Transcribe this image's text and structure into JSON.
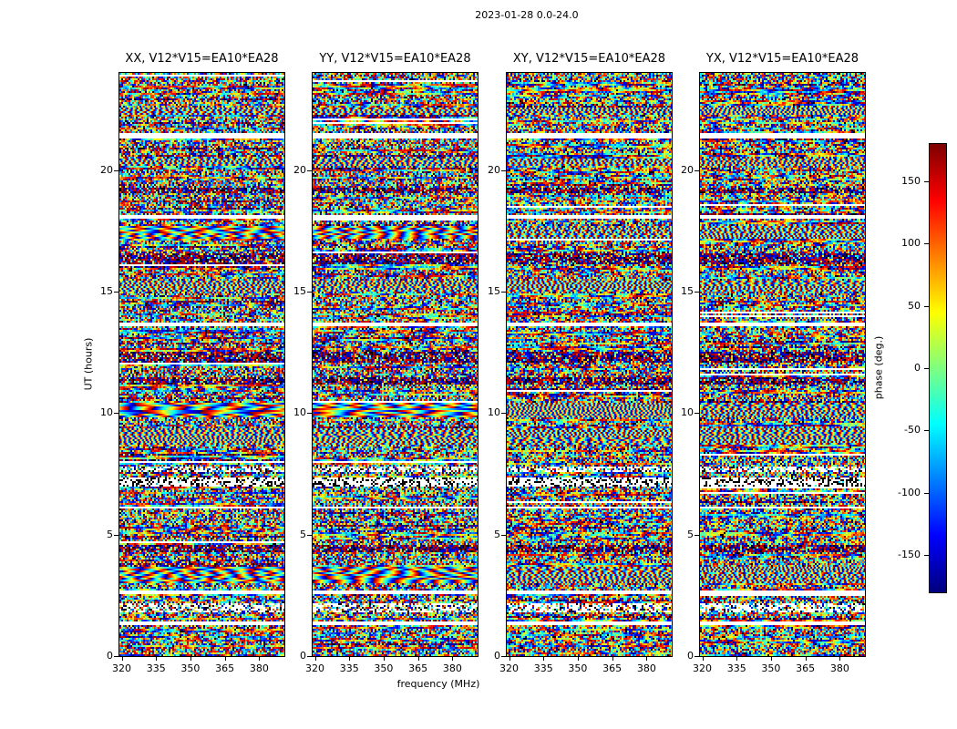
{
  "figure": {
    "title": "2023-01-28 0.0-24.0",
    "xlabel": "frequency (MHz)",
    "ylabel": "UT (hours)",
    "colorbar_label": "phase (deg.)"
  },
  "panels": [
    {
      "title": "XX, V12*V15=EA10*EA28"
    },
    {
      "title": "YY, V12*V15=EA10*EA28"
    },
    {
      "title": "XY, V12*V15=EA10*EA28"
    },
    {
      "title": "YX, V12*V15=EA10*EA28"
    }
  ],
  "chart_data": {
    "type": "heatmap",
    "title": "2023-01-28 0.0-24.0",
    "xlabel": "frequency (MHz)",
    "ylabel": "UT (hours)",
    "colorbar_label": "phase (deg.)",
    "colormap": "jet",
    "polarizations": [
      "XX",
      "YY",
      "XY",
      "YX"
    ],
    "baseline": "V12*V15=EA10*EA28",
    "xlim": [
      319,
      391
    ],
    "ylim": [
      0,
      24
    ],
    "zlim": [
      -180,
      180
    ],
    "xticks": [
      320,
      335,
      350,
      365,
      380
    ],
    "yticks": [
      0,
      5,
      10,
      15,
      20
    ],
    "colorbar_ticks": [
      150,
      100,
      50,
      0,
      -50,
      -100,
      -150
    ],
    "description": "Four panels of interferometric visibility phase (deg.) versus frequency (320-390 MHz) and UT time (0-24 h) for baseline V12*V15=EA10*EA28 in polarizations XX, YY, XY, YX. The pixel values are quasi-random phases spanning -180 to +180 deg rendered with the jet colormap; horizontal band structure includes blank (white) time gaps, dense dark scans, fine fringe stripes, and smooth rainbow fringe scans (strongest in XX and YY).",
    "noise_seed": 987653,
    "bands": [
      {
        "t0": 1.25,
        "t1": 1.45,
        "type": "gap"
      },
      {
        "t0": 1.8,
        "t1": 2.15,
        "type": "speckle"
      },
      {
        "t0": 2.55,
        "t1": 2.72,
        "type": "gap"
      },
      {
        "t0": 3.0,
        "t1": 3.65,
        "type": "fringe",
        "xpol": "fringe2"
      },
      {
        "t0": 4.3,
        "t1": 4.6,
        "type": "dark"
      },
      {
        "t0": 6.05,
        "t1": 6.18,
        "type": "gap"
      },
      {
        "t0": 7.0,
        "t1": 7.35,
        "type": "whitedash"
      },
      {
        "t0": 7.6,
        "t1": 7.78,
        "type": "speckle"
      },
      {
        "t0": 8.7,
        "t1": 9.35,
        "type": "fringe2"
      },
      {
        "t0": 9.8,
        "t1": 10.45,
        "type": "fringe",
        "xpol": "fringe2"
      },
      {
        "t0": 11.2,
        "t1": 11.45,
        "type": "dark"
      },
      {
        "t0": 12.1,
        "t1": 12.5,
        "type": "dark"
      },
      {
        "t0": 13.6,
        "t1": 13.72,
        "type": "gap"
      },
      {
        "t0": 15.0,
        "t1": 15.45,
        "type": "fringe2"
      },
      {
        "t0": 16.1,
        "t1": 16.6,
        "type": "dark"
      },
      {
        "t0": 17.2,
        "t1": 17.7,
        "type": "fringe",
        "xpol": "fringe2"
      },
      {
        "t0": 18.0,
        "t1": 18.18,
        "type": "gap"
      },
      {
        "t0": 19.05,
        "t1": 19.3,
        "type": "dark"
      },
      {
        "t0": 20.2,
        "t1": 20.5,
        "type": "fringe2"
      },
      {
        "t0": 21.3,
        "t1": 21.52,
        "type": "gap"
      },
      {
        "t0": 22.3,
        "t1": 22.55,
        "type": "fringe2"
      }
    ]
  }
}
